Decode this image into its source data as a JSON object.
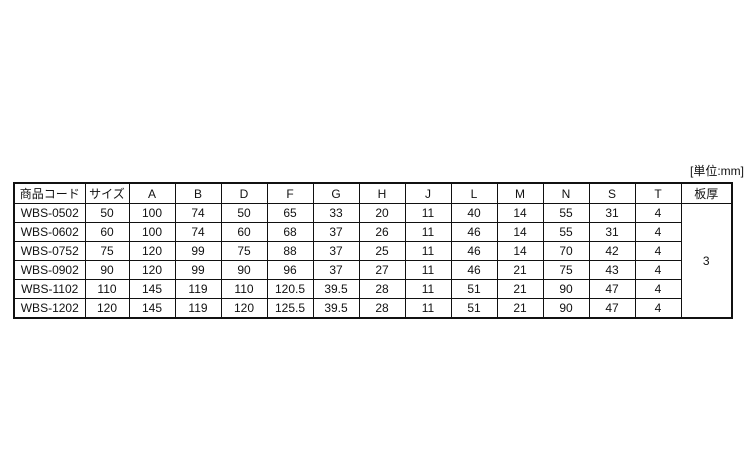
{
  "unit_label": "[単位:mm]",
  "table": {
    "headers": {
      "code": "商品コード",
      "size": "サイズ",
      "a": "A",
      "b": "B",
      "d": "D",
      "f": "F",
      "g": "G",
      "h": "H",
      "j": "J",
      "l": "L",
      "m": "M",
      "n": "N",
      "s": "S",
      "t": "T",
      "plate": "板厚"
    },
    "rows": [
      {
        "cells": [
          "WBS-0502",
          "50",
          "100",
          "74",
          "50",
          "65",
          "33",
          "20",
          "11",
          "40",
          "14",
          "55",
          "31",
          "4"
        ]
      },
      {
        "cells": [
          "WBS-0602",
          "60",
          "100",
          "74",
          "60",
          "68",
          "37",
          "26",
          "11",
          "46",
          "14",
          "55",
          "31",
          "4"
        ]
      },
      {
        "cells": [
          "WBS-0752",
          "75",
          "120",
          "99",
          "75",
          "88",
          "37",
          "25",
          "11",
          "46",
          "14",
          "70",
          "42",
          "4"
        ]
      },
      {
        "cells": [
          "WBS-0902",
          "90",
          "120",
          "99",
          "90",
          "96",
          "37",
          "27",
          "11",
          "46",
          "21",
          "75",
          "43",
          "4"
        ]
      },
      {
        "cells": [
          "WBS-1102",
          "110",
          "145",
          "119",
          "110",
          "120.5",
          "39.5",
          "28",
          "11",
          "51",
          "21",
          "90",
          "47",
          "4"
        ]
      },
      {
        "cells": [
          "WBS-1202",
          "120",
          "145",
          "119",
          "120",
          "125.5",
          "39.5",
          "28",
          "11",
          "51",
          "21",
          "90",
          "47",
          "4"
        ]
      }
    ],
    "plate_thickness": "3"
  }
}
